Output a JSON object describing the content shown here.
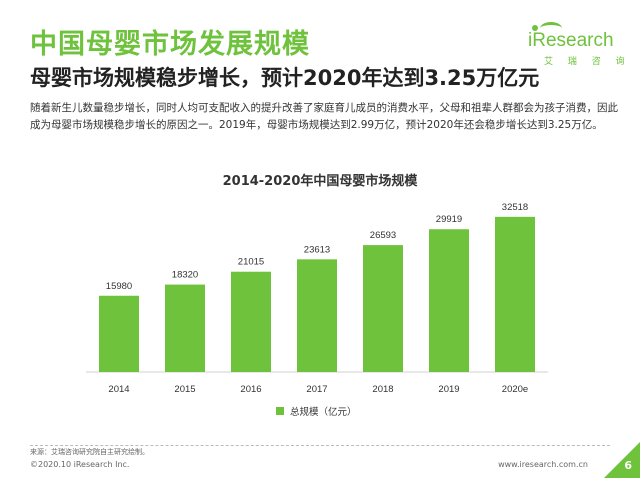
{
  "header": {
    "title": "中国母婴市场发展规模",
    "subtitle": "母婴市场规模稳步增长，预计2020年达到3.25万亿元"
  },
  "logo": {
    "brand": "iResearch",
    "brand_cn": "艾 瑞 咨 询"
  },
  "body": {
    "paragraph": "随着新生儿数量稳步增长，同时人均可支配收入的提升改善了家庭育儿成员的消费水平，父母和祖辈人群都会为孩子消费，因此成为母婴市场规模稳步增长的原因之一。2019年，母婴市场规模达到2.99万亿，预计2020年还会稳步增长达到3.25万亿。"
  },
  "chart_data": {
    "type": "bar",
    "title": "2014-2020年中国母婴市场规模",
    "categories": [
      "2014",
      "2015",
      "2016",
      "2017",
      "2018",
      "2019",
      "2020e"
    ],
    "series": [
      {
        "name": "总规模（亿元）",
        "values": [
          15980,
          18320,
          21015,
          23613,
          26593,
          29919,
          32518
        ]
      }
    ],
    "ylim": [
      0,
      35000
    ],
    "grid": false,
    "legend": "bottom",
    "bar_color": "#6ec23c"
  },
  "footer": {
    "source": "来源：艾瑞咨询研究院自主研究绘制。",
    "copyright": "©2020.10 iResearch Inc.",
    "website": "www.iresearch.com.cn",
    "page_number": "6"
  },
  "colors": {
    "accent": "#6ec23c",
    "text": "#333333"
  }
}
